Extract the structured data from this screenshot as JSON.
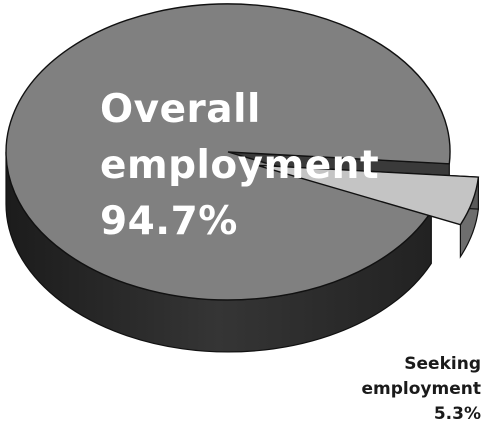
{
  "chart_data": {
    "type": "pie",
    "style": "3d",
    "slices": [
      {
        "label_lines": [
          "Overall",
          "employment",
          "94.7%"
        ],
        "value": 94.7,
        "color": "#808080",
        "side_color": "#2e2e2e"
      },
      {
        "label_lines": [
          "Seeking",
          "employment",
          "5.3%"
        ],
        "value": 5.3,
        "color": "#c4c4c4",
        "side_color": "#6e6e6e",
        "exploded": true
      }
    ]
  }
}
